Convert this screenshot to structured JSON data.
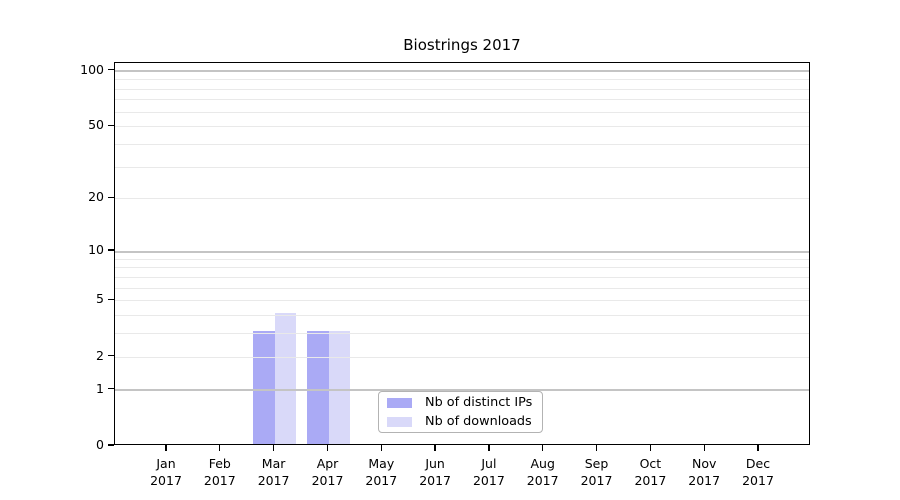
{
  "chart_data": {
    "type": "bar",
    "title": "Biostrings 2017",
    "categories": [
      "Jan",
      "Feb",
      "Mar",
      "Apr",
      "May",
      "Jun",
      "Jul",
      "Aug",
      "Sep",
      "Oct",
      "Nov",
      "Dec"
    ],
    "category_year": "2017",
    "series": [
      {
        "name": "Nb of distinct IPs",
        "color": "#aaaaf5",
        "values": [
          0,
          0,
          3,
          3,
          0,
          0,
          0,
          0,
          0,
          0,
          0,
          0
        ]
      },
      {
        "name": "Nb of downloads",
        "color": "#d9d9f9",
        "values": [
          0,
          0,
          4,
          3,
          0,
          0,
          0,
          0,
          0,
          0,
          0,
          0
        ]
      }
    ],
    "yscale": "log1p",
    "ylim": [
      0,
      110
    ],
    "y_ticks": [
      0,
      1,
      2,
      5,
      10,
      20,
      50,
      100
    ],
    "grid_minor": [
      2,
      3,
      4,
      5,
      6,
      7,
      8,
      9,
      20,
      30,
      40,
      50,
      60,
      70,
      80,
      90
    ],
    "grid_major": [
      1,
      10,
      100
    ],
    "grid": true,
    "legend_position": "inside-bottom-center",
    "colors": {
      "grid_minor": "#e9e9e9",
      "grid_major": "#c4c4c4",
      "spine": "#000000",
      "legend_border": "#b3b3b3",
      "background": "#ffffff",
      "text": "#000000"
    }
  }
}
